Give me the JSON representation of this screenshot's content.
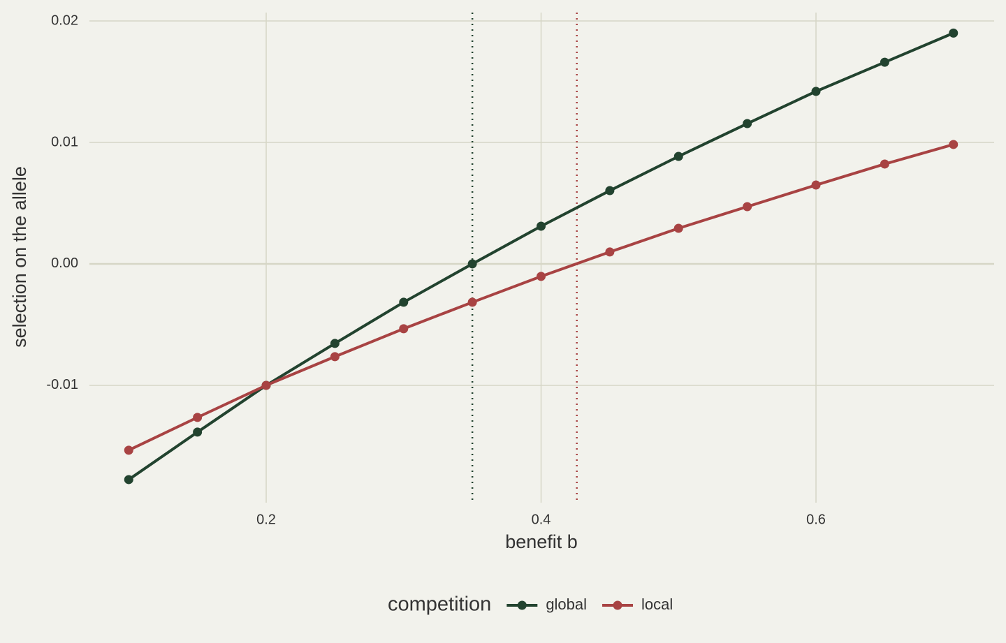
{
  "chart_data": {
    "type": "line",
    "x_label": "benefit b",
    "y_label": "selection on the allele",
    "x": [
      0.1,
      0.15,
      0.2,
      0.25,
      0.3,
      0.35,
      0.4,
      0.45,
      0.5,
      0.55,
      0.6,
      0.65,
      0.7
    ],
    "series": [
      {
        "name": "global",
        "color": "#22432f",
        "values": [
          -0.01776,
          -0.01385,
          -0.01,
          -0.00655,
          -0.00316,
          0.0,
          0.0031,
          0.00603,
          0.00885,
          0.01155,
          0.0142,
          0.0166,
          0.019
        ]
      },
      {
        "name": "local",
        "color": "#a84343",
        "values": [
          -0.01534,
          -0.01264,
          -0.01,
          -0.00764,
          -0.00534,
          -0.00316,
          -0.00103,
          0.00098,
          0.00293,
          0.00471,
          0.00649,
          0.00822,
          0.00983
        ]
      }
    ],
    "vlines": [
      {
        "x": 0.35,
        "color": "#22432f"
      },
      {
        "x": 0.426,
        "color": "#a84343"
      }
    ],
    "xlim": [
      0.0714,
      0.7296
    ],
    "ylim": [
      -0.01966,
      0.02069
    ],
    "xticks": [
      0.2,
      0.4,
      0.6
    ],
    "yticks": [
      -0.01,
      {
        "value": 0,
        "label": "0.00"
      },
      0.01,
      0.02
    ],
    "grid": true,
    "legend_title": "competition",
    "legend_position": "bottom"
  }
}
